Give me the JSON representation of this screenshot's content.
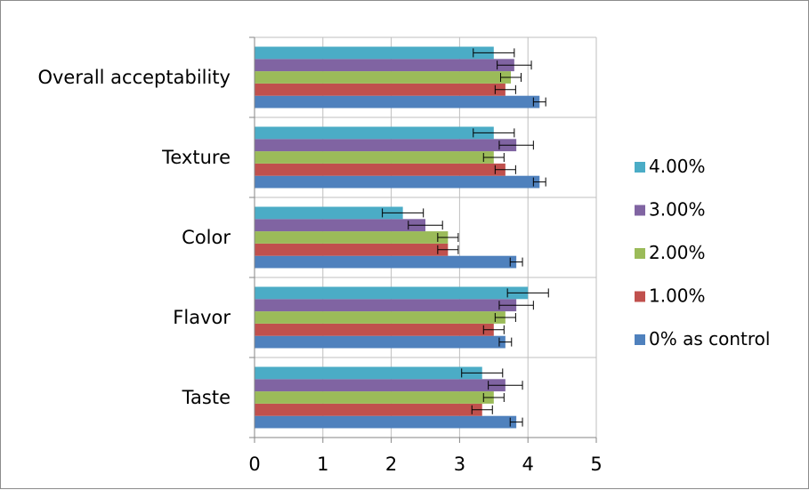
{
  "chart_data": {
    "type": "bar",
    "orientation": "horizontal",
    "categories": [
      "Taste",
      "Flavor",
      "Color",
      "Texture",
      "Overall acceptability"
    ],
    "xlim": [
      0,
      5
    ],
    "xticks": [
      "0",
      "1",
      "2",
      "3",
      "4",
      "5"
    ],
    "grid": "horizontal category separators",
    "legend_position": "right",
    "series": [
      {
        "name": "0% as control",
        "color": "#4f81bd",
        "values": [
          3.83,
          3.67,
          3.83,
          4.17,
          4.17
        ],
        "errors": [
          0.09,
          0.09,
          0.09,
          0.09,
          0.09
        ]
      },
      {
        "name": "1.00%",
        "color": "#c0504d",
        "values": [
          3.33,
          3.5,
          2.83,
          3.67,
          3.67
        ],
        "errors": [
          0.15,
          0.15,
          0.15,
          0.15,
          0.15
        ]
      },
      {
        "name": "2.00%",
        "color": "#9bbb59",
        "values": [
          3.5,
          3.67,
          2.83,
          3.5,
          3.75
        ],
        "errors": [
          0.15,
          0.15,
          0.15,
          0.15,
          0.15
        ]
      },
      {
        "name": "3.00%",
        "color": "#8064a2",
        "values": [
          3.67,
          3.83,
          2.5,
          3.83,
          3.8
        ],
        "errors": [
          0.25,
          0.25,
          0.25,
          0.25,
          0.25
        ]
      },
      {
        "name": "4.00%",
        "color": "#4bacc6",
        "values": [
          3.33,
          4.0,
          2.17,
          3.5,
          3.5
        ],
        "errors": [
          0.3,
          0.3,
          0.3,
          0.3,
          0.3
        ]
      }
    ]
  }
}
